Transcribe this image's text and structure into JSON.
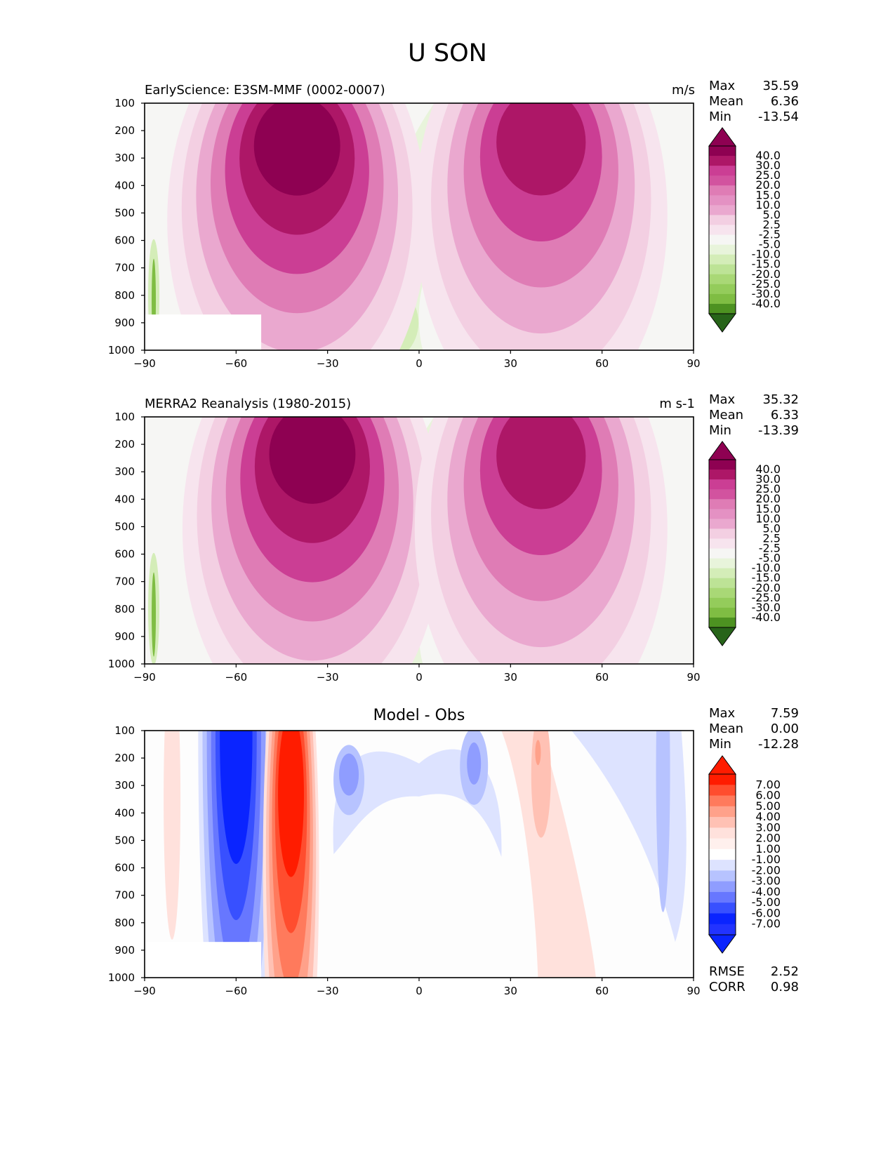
{
  "figure": {
    "title": "U SON"
  },
  "colors": {
    "bg_field": "#f6f6f4",
    "pink_levels": [
      "#f7e4ee",
      "#f3cfe2",
      "#eaa8cf",
      "#df7cb5",
      "#cb3e94",
      "#ad1767",
      "#8e0152"
    ],
    "green_levels": [
      "#e8f4db",
      "#d4edb8",
      "#a9d876",
      "#7fbd43",
      "#4d9221",
      "#276419"
    ],
    "diff_red": [
      "#ffe1dc",
      "#ffc1b4",
      "#ffa18a",
      "#ff7a5c",
      "#ff4d2e",
      "#ff1c00"
    ],
    "diff_blue": [
      "#dde3ff",
      "#b7c3ff",
      "#8f9dff",
      "#6777ff",
      "#3850ff",
      "#0a24ff"
    ]
  },
  "panels": [
    {
      "name": "test",
      "title": "EarlyScience: E3SM-MMF (0002-0007)",
      "units": "m/s",
      "stats": [
        {
          "label": "Max",
          "value": "35.59"
        },
        {
          "label": "Mean",
          "value": "6.36"
        },
        {
          "label": "Min",
          "value": "-13.54"
        }
      ],
      "colorbar": [
        "40.0",
        "30.0",
        "25.0",
        "20.0",
        "15.0",
        "10.0",
        "5.0",
        "2.5",
        "-2.5",
        "-5.0",
        "-10.0",
        "-15.0",
        "-20.0",
        "-25.0",
        "-30.0",
        "-40.0"
      ]
    },
    {
      "name": "reference",
      "title": "MERRA2 Reanalysis (1980-2015)",
      "units": "m s-1",
      "stats": [
        {
          "label": "Max",
          "value": "35.32"
        },
        {
          "label": "Mean",
          "value": "6.33"
        },
        {
          "label": "Min",
          "value": "-13.39"
        }
      ],
      "colorbar": [
        "40.0",
        "30.0",
        "25.0",
        "20.0",
        "15.0",
        "10.0",
        "5.0",
        "2.5",
        "-2.5",
        "-5.0",
        "-10.0",
        "-15.0",
        "-20.0",
        "-25.0",
        "-30.0",
        "-40.0"
      ]
    },
    {
      "name": "difference",
      "title": "Model - Obs",
      "units": "",
      "stats": [
        {
          "label": "Max",
          "value": "7.59"
        },
        {
          "label": "Mean",
          "value": "0.00"
        },
        {
          "label": "Min",
          "value": "-12.28"
        }
      ],
      "extra_stats": [
        {
          "label": "RMSE",
          "value": "2.52"
        },
        {
          "label": "CORR",
          "value": "0.98"
        }
      ],
      "colorbar": [
        "7.00",
        "6.00",
        "5.00",
        "4.00",
        "3.00",
        "2.00",
        "1.00",
        "-1.00",
        "-2.00",
        "-3.00",
        "-4.00",
        "-5.00",
        "-6.00",
        "-7.00"
      ]
    }
  ],
  "chart_data": [
    {
      "type": "heatmap",
      "title": "EarlyScience: E3SM-MMF (0002-0007)",
      "units": "m/s",
      "x_ticks": [
        "−90",
        "−60",
        "−30",
        "0",
        "30",
        "60",
        "90"
      ],
      "y_ticks": [
        "100",
        "200",
        "300",
        "400",
        "500",
        "600",
        "700",
        "800",
        "900",
        "1000"
      ],
      "xlim": [
        -90,
        90
      ],
      "ylim": [
        1000,
        100
      ],
      "jets": [
        {
          "lat": -40,
          "p": 220,
          "peak": 35.59
        },
        {
          "lat": 40,
          "p": 200,
          "peak": 30
        }
      ],
      "min_value": -13.54
    },
    {
      "type": "heatmap",
      "title": "MERRA2 Reanalysis (1980-2015)",
      "units": "m s-1",
      "x_ticks": [
        "−90",
        "−60",
        "−30",
        "0",
        "30",
        "60",
        "90"
      ],
      "y_ticks": [
        "100",
        "200",
        "300",
        "400",
        "500",
        "600",
        "700",
        "800",
        "900",
        "1000"
      ],
      "xlim": [
        -90,
        90
      ],
      "ylim": [
        1000,
        100
      ],
      "jets": [
        {
          "lat": -35,
          "p": 200,
          "peak": 35.32
        },
        {
          "lat": 40,
          "p": 200,
          "peak": 30
        }
      ],
      "min_value": -13.39
    },
    {
      "type": "heatmap",
      "title": "Model - Obs",
      "x_ticks": [
        "−90",
        "−60",
        "−30",
        "0",
        "30",
        "60",
        "90"
      ],
      "y_ticks": [
        "100",
        "200",
        "300",
        "400",
        "500",
        "600",
        "700",
        "800",
        "900",
        "1000"
      ],
      "xlim": [
        -90,
        90
      ],
      "ylim": [
        1000,
        100
      ],
      "features": [
        {
          "lat": -60,
          "p": 100,
          "value": -12.28
        },
        {
          "lat": -42,
          "p": 250,
          "value": 7.59
        },
        {
          "lat": -25,
          "p": 300,
          "value": -4
        },
        {
          "lat": 20,
          "p": 250,
          "value": -4
        },
        {
          "lat": 40,
          "p": 200,
          "value": 4
        },
        {
          "lat": 80,
          "p": 300,
          "value": -3
        }
      ]
    }
  ]
}
